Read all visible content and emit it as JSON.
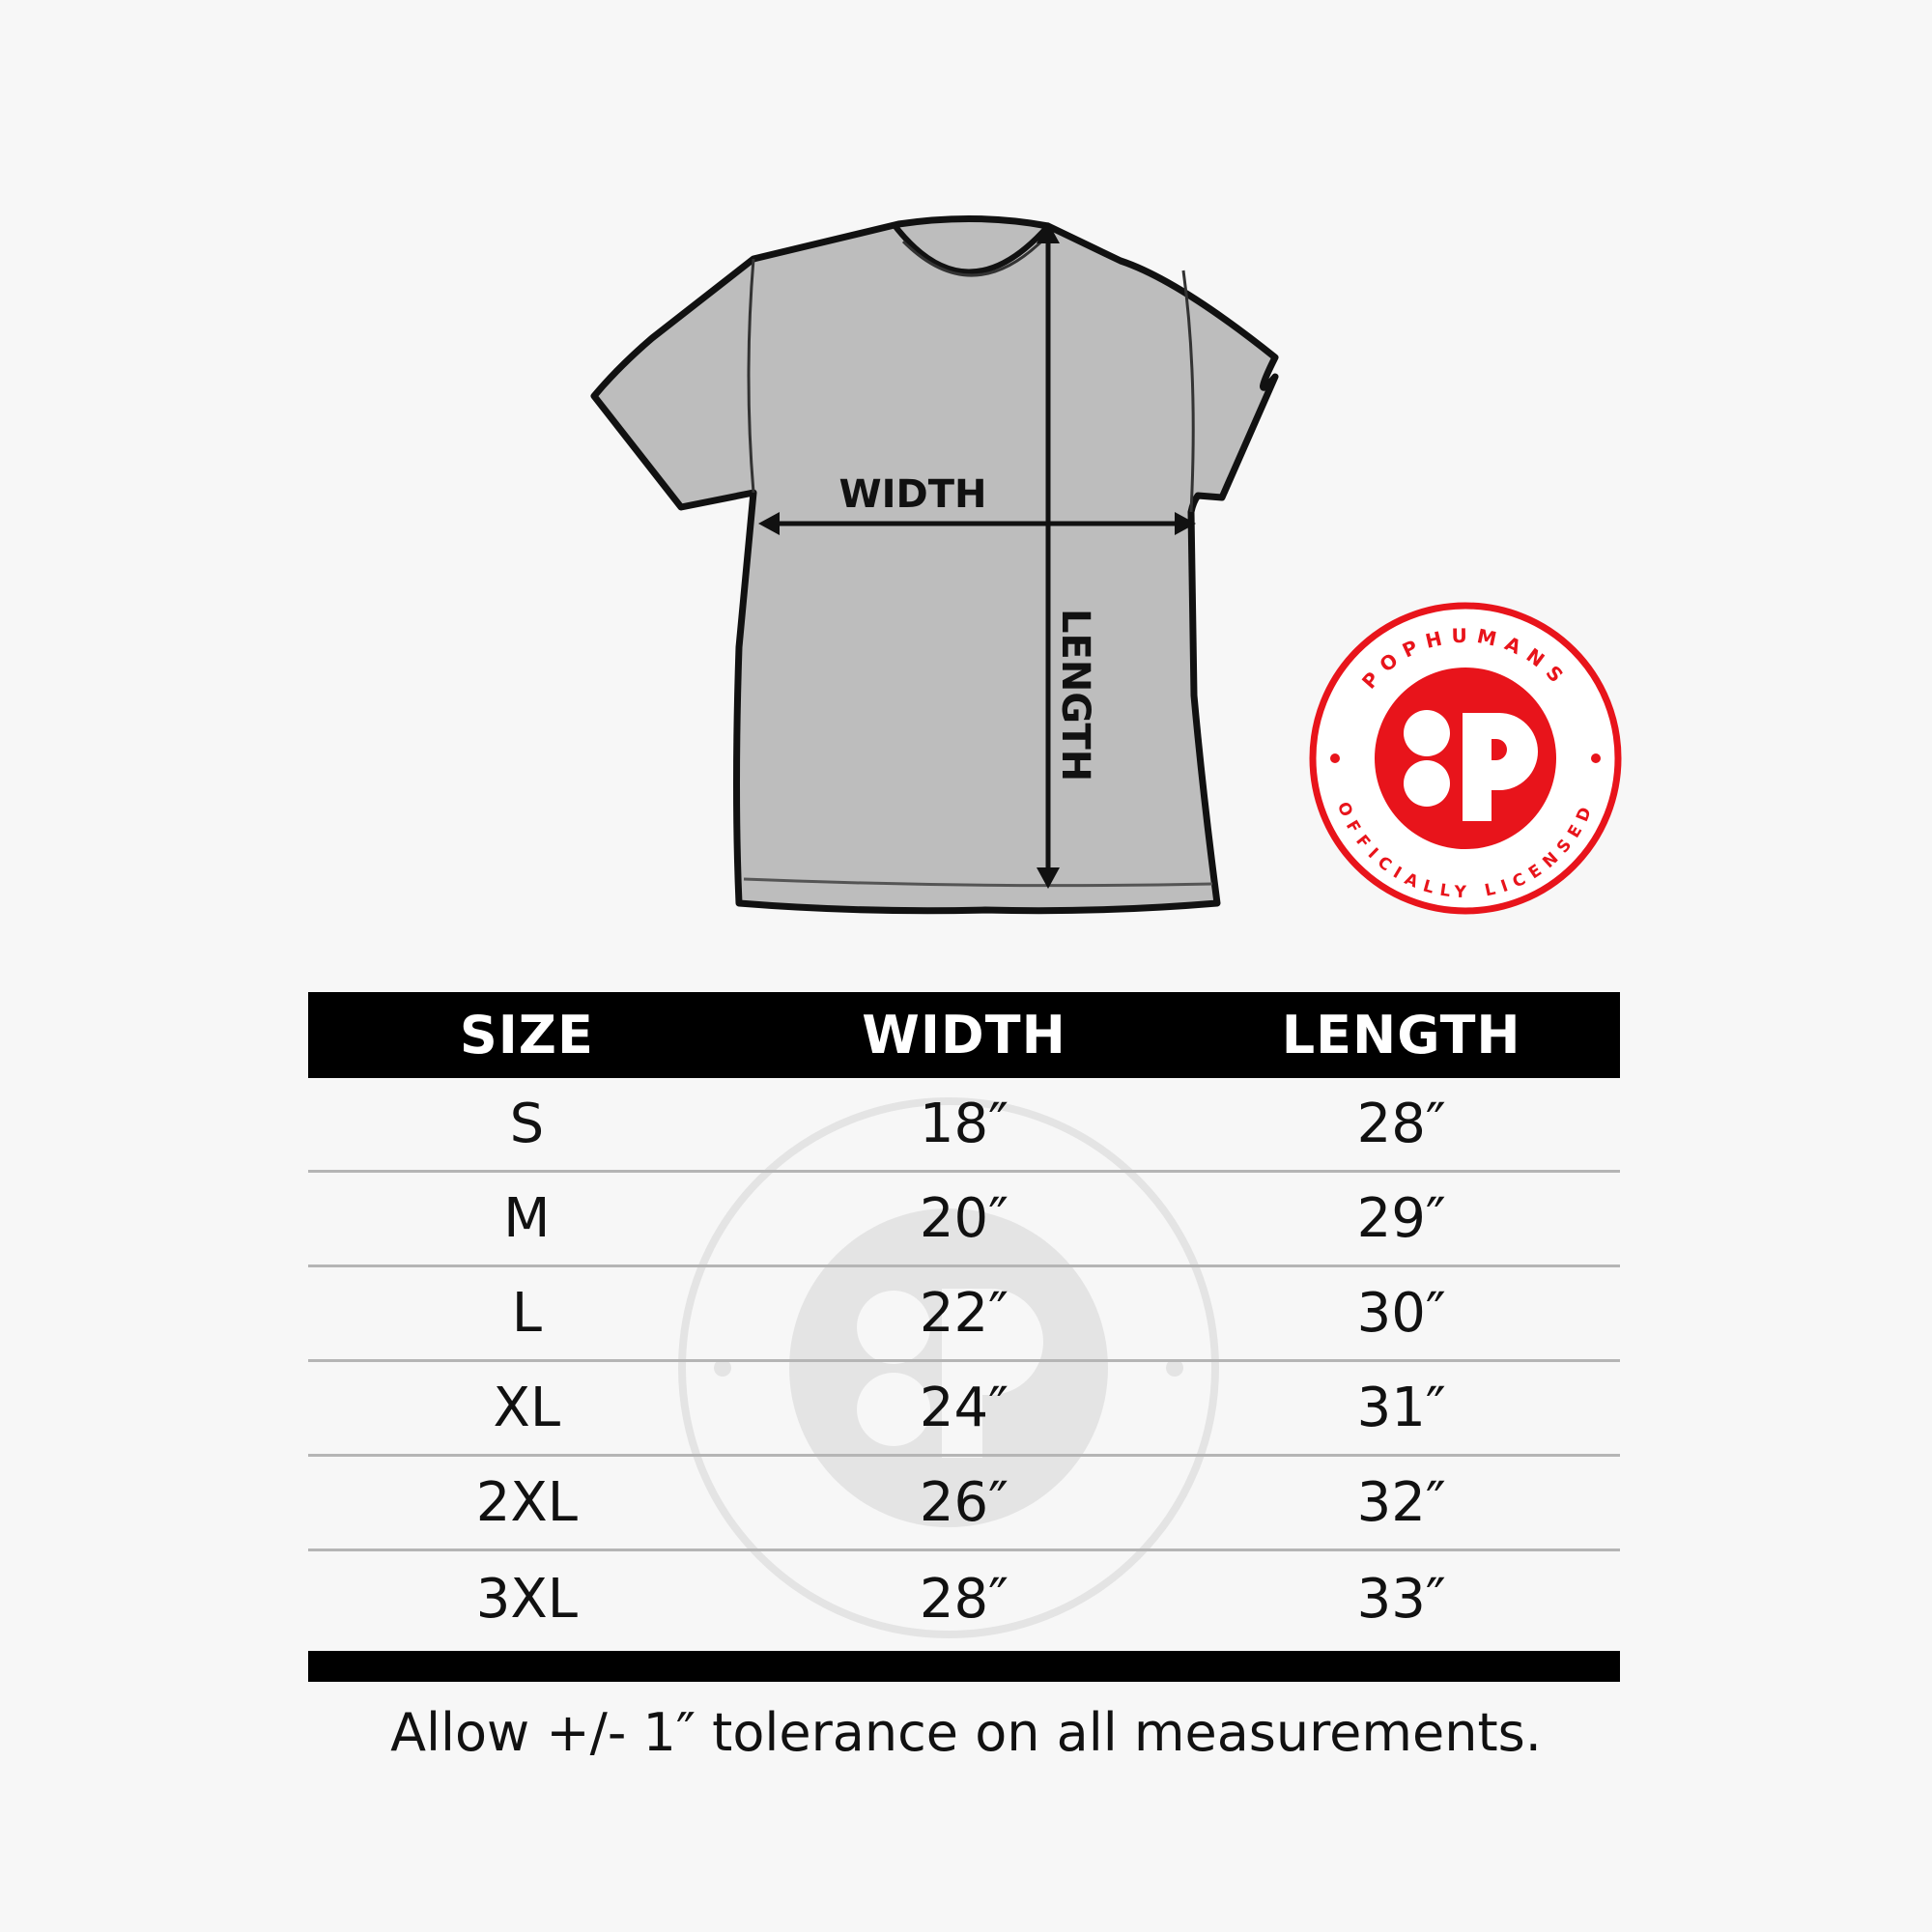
{
  "diagram": {
    "width_label": "WIDTH",
    "length_label": "LENGTH"
  },
  "logo": {
    "top_text": "POPHUMANS",
    "bottom_text": "OFFICIALLY LICENSED",
    "color": "#e8141b"
  },
  "table": {
    "headers": [
      "SIZE",
      "WIDTH",
      "LENGTH"
    ],
    "rows": [
      [
        "S",
        "18″",
        "28″"
      ],
      [
        "M",
        "20″",
        "29″"
      ],
      [
        "L",
        "22″",
        "30″"
      ],
      [
        "XL",
        "24″",
        "31″"
      ],
      [
        "2XL",
        "26″",
        "32″"
      ],
      [
        "3XL",
        "28″",
        "33″"
      ]
    ]
  },
  "footer": "Allow +/- 1″ tolerance on all measurements."
}
